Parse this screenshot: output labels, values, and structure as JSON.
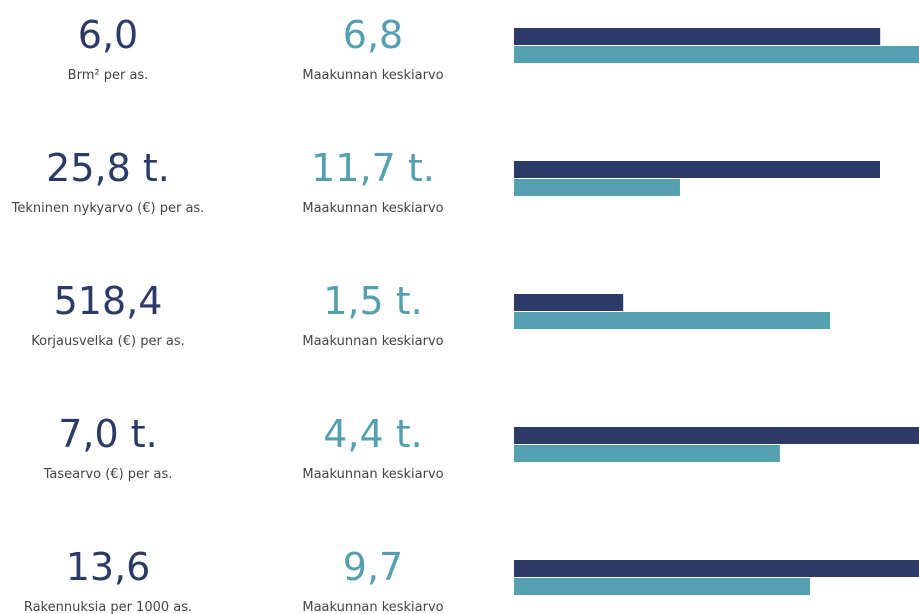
{
  "rows": [
    {
      "value": 6.0,
      "value_label": "6,0",
      "label": "Brm² per as.",
      "avg": 6.8,
      "avg_label": "6,8",
      "avg_caption": "Maakunnan keskiarvo"
    },
    {
      "value": 25800,
      "value_label": "25,8 t.",
      "label": "Tekninen nykyarvo (€) per as.",
      "avg": 11700,
      "avg_label": "11,7 t.",
      "avg_caption": "Maakunnan keskiarvo"
    },
    {
      "value": 518.4,
      "value_label": "518,4",
      "label": "Korjausvelka (€) per as.",
      "avg": 1500,
      "avg_label": "1,5 t.",
      "avg_caption": "Maakunnan keskiarvo"
    },
    {
      "value": 7000,
      "value_label": "7,0 t.",
      "label": "Tasearvo (€) per as.",
      "avg": 4400,
      "avg_label": "4,4 t.",
      "avg_caption": "Maakunnan keskiarvo"
    },
    {
      "value": 13.6,
      "value_label": "13,6",
      "label": "Rakennuksia per 1000 as.",
      "avg": 9.7,
      "avg_label": "9,7",
      "avg_caption": "Maakunnan keskiarvo"
    }
  ],
  "colors": {
    "value": "#2b3a67",
    "avg": "#55a0b0"
  }
}
